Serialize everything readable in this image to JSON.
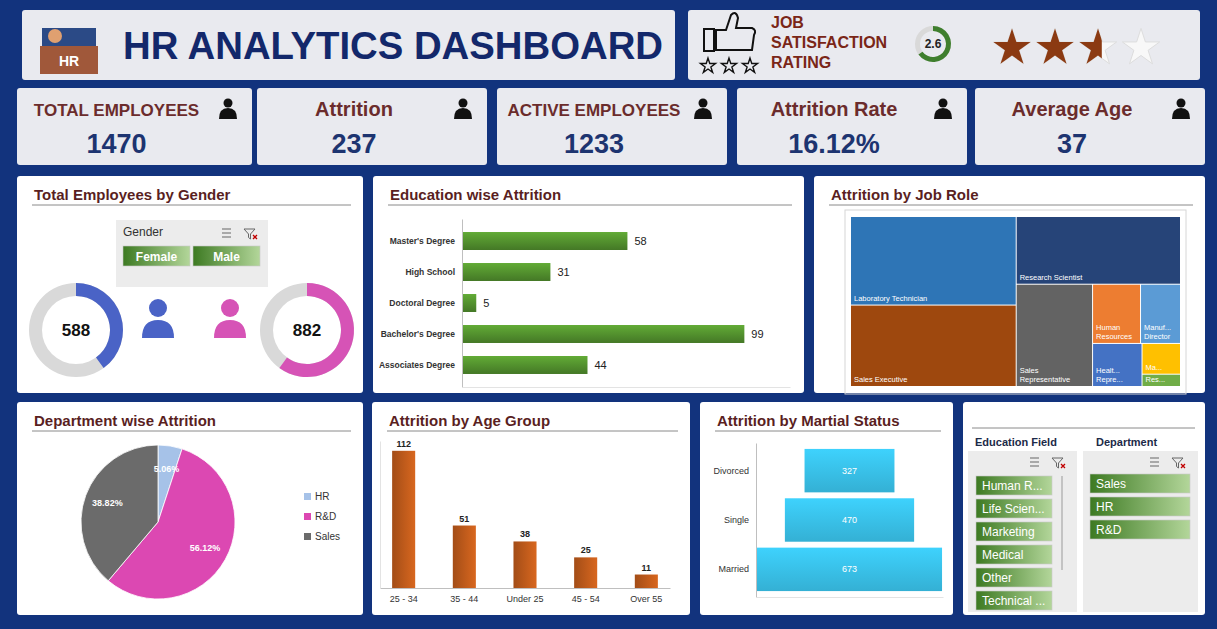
{
  "header": {
    "title": "HR ANALYTICS DASHBOARD",
    "icon_text": "HR"
  },
  "rating": {
    "title": [
      "JOB",
      "SATISFACTION",
      "RATING"
    ],
    "value": 2.6,
    "scale_max": 4
  },
  "kpis": [
    {
      "label": "TOTAL EMPLOYEES",
      "value": 1470
    },
    {
      "label": "Attrition",
      "value": 237
    },
    {
      "label": "ACTIVE EMPLOYEES",
      "value": 1233
    },
    {
      "label": "Attrition Rate",
      "value": 16.12,
      "value_label": "16.12%"
    },
    {
      "label": "Average Age",
      "value": 37
    }
  ],
  "chart_data": [
    {
      "type": "donut",
      "title": "Total Employees by Gender",
      "categories": [
        "Female",
        "Male"
      ],
      "values": [
        588,
        882
      ],
      "colors": [
        "#4a63c6",
        "#d653b6"
      ],
      "data_labels": true
    },
    {
      "type": "bar",
      "title": "Education wise Attrition",
      "orientation": "horizontal",
      "categories": [
        "Master's Degree",
        "High School",
        "Doctoral Degree",
        "Bachelor's Degree",
        "Associates Degree"
      ],
      "values": [
        58,
        31,
        5,
        99,
        44
      ],
      "color": "#4f8a2c",
      "xlim": [
        0,
        115
      ],
      "xticks": [],
      "data_labels": true,
      "tick_labels": "y"
    },
    {
      "type": "treemap",
      "title": "Attrition by Job Role",
      "categories": [
        "Laboratory Technician",
        "Sales Executive",
        "Research Scientist",
        "Sales Representative",
        "Human Resources",
        "Manuf... Director",
        "Healt... Repre...",
        "Ma...",
        "Res..."
      ],
      "values": [
        62,
        57,
        47,
        33,
        12,
        10,
        9,
        5,
        2
      ],
      "colors": [
        "#2e75b6",
        "#9e480e",
        "#264478",
        "#636363",
        "#ed7d31",
        "#5b9bd5",
        "#4472c4",
        "#ffc000",
        "#70ad47"
      ]
    },
    {
      "type": "pie",
      "title": "Department wise Attrition",
      "categories": [
        "HR",
        "R&D",
        "Sales"
      ],
      "values": [
        5.06,
        56.12,
        38.82
      ],
      "value_labels": [
        "5.06%",
        "56.12%",
        "38.82%"
      ],
      "colors": [
        "#a6c2e8",
        "#dc48b2",
        "#6b6b6b"
      ],
      "legend": "right",
      "data_labels": true
    },
    {
      "type": "bar",
      "title": "Attrition by Age Group",
      "categories": [
        "25 - 34",
        "35 - 44",
        "Under 25",
        "45 - 54",
        "Over 55"
      ],
      "values": [
        112,
        51,
        38,
        25,
        11
      ],
      "color": "#b5561a",
      "ylim": [
        0,
        120
      ],
      "yticks": [],
      "data_labels": true,
      "tick_labels": "x"
    },
    {
      "type": "funnel",
      "title": "Attrition by Martial Status",
      "categories": [
        "Divorced",
        "Single",
        "Married"
      ],
      "values": [
        327,
        470,
        673
      ],
      "color": "#34b0d4",
      "xlim": [
        0,
        680
      ],
      "xticks": [],
      "data_labels": true,
      "tick_labels": "y"
    }
  ],
  "slicers": [
    {
      "title": "Gender",
      "items": [
        "Female",
        "Male"
      ]
    },
    {
      "title": "Education Field",
      "items": [
        "Human R...",
        "Life Scien...",
        "Marketing",
        "Medical",
        "Other",
        "Technical ..."
      ]
    },
    {
      "title": "Department",
      "items": [
        "Sales",
        "HR",
        "R&D"
      ]
    }
  ]
}
